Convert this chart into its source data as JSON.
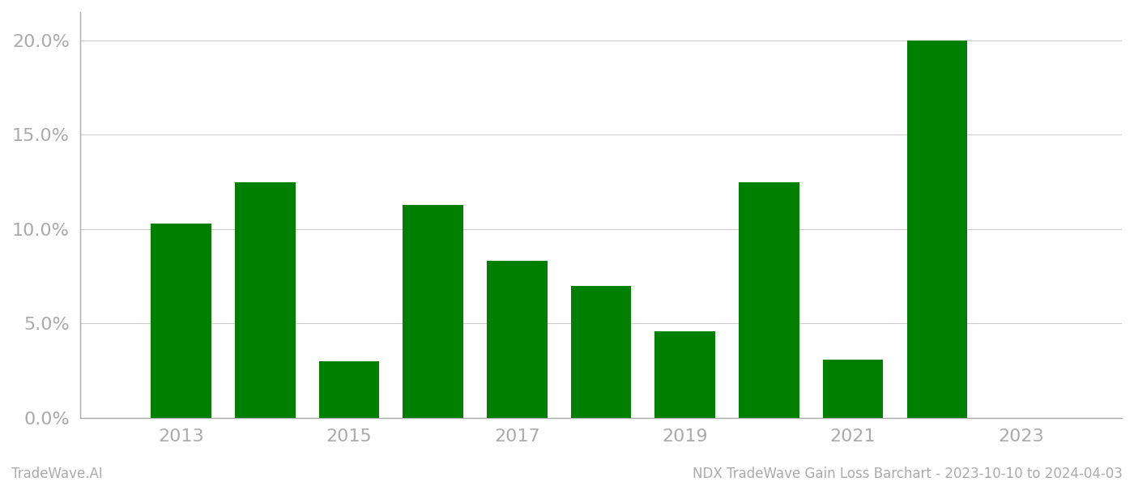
{
  "years": [
    2013,
    2014,
    2015,
    2016,
    2017,
    2018,
    2019,
    2020,
    2021,
    2022
  ],
  "values": [
    0.103,
    0.125,
    0.03,
    0.113,
    0.083,
    0.07,
    0.046,
    0.125,
    0.031,
    0.2
  ],
  "bar_color": "#008000",
  "background_color": "#ffffff",
  "grid_color": "#cccccc",
  "tick_color": "#aaaaaa",
  "spine_color": "#aaaaaa",
  "title_text": "NDX TradeWave Gain Loss Barchart - 2023-10-10 to 2024-04-03",
  "watermark_text": "TradeWave.AI",
  "ylim": [
    0,
    0.215
  ],
  "yticks": [
    0.0,
    0.05,
    0.1,
    0.15,
    0.2
  ],
  "xtick_labels": [
    "2013",
    "2015",
    "2017",
    "2019",
    "2021",
    "2023"
  ],
  "xtick_positions": [
    2013,
    2015,
    2017,
    2019,
    2021,
    2023
  ],
  "xlim": [
    2011.8,
    2024.2
  ],
  "title_fontsize": 12,
  "watermark_fontsize": 12,
  "ytick_fontsize": 16,
  "xtick_fontsize": 16,
  "bar_width": 0.72
}
